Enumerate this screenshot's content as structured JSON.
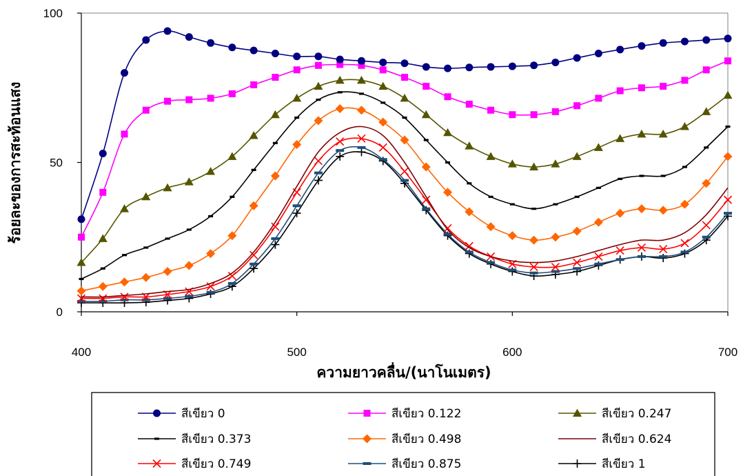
{
  "chart_data": {
    "type": "line",
    "xlabel": "ความยาวคลื่น/(นาโนเมตร)",
    "ylabel": "ร้อยละของการสะท้อนแสง",
    "xlim": [
      400,
      700
    ],
    "ylim": [
      0,
      100
    ],
    "x_ticks": [
      "400",
      "500",
      "600",
      "700"
    ],
    "y_ticks": [
      "0",
      "50",
      "100"
    ],
    "grid": false,
    "legend_position": "bottom",
    "x": [
      400,
      410,
      420,
      430,
      440,
      450,
      460,
      470,
      480,
      490,
      500,
      510,
      520,
      530,
      540,
      550,
      560,
      570,
      580,
      590,
      600,
      610,
      620,
      630,
      640,
      650,
      660,
      670,
      680,
      690,
      700
    ],
    "series": [
      {
        "name": "สีเขียว 0",
        "color": "#000080",
        "marker": "circle",
        "values": [
          31,
          53,
          80,
          91,
          94,
          92,
          90,
          88.5,
          87.5,
          86.5,
          85.5,
          85.5,
          84.5,
          84,
          83.5,
          83.2,
          82,
          81.5,
          81.8,
          82,
          82.2,
          82.5,
          83.5,
          85,
          86.5,
          87.8,
          89,
          90,
          90.5,
          91,
          91.5
        ]
      },
      {
        "name": "สีเขียว 0.122",
        "color": "#ff00ff",
        "marker": "square",
        "values": [
          25,
          40,
          59.5,
          67.5,
          70.5,
          71,
          71.5,
          73,
          76,
          78.5,
          81,
          82.5,
          82.8,
          82.5,
          81,
          78.5,
          75.5,
          72,
          69.5,
          67.5,
          66,
          66,
          67,
          69,
          71.5,
          74,
          75,
          75.5,
          77.5,
          81,
          84
        ]
      },
      {
        "name": "สีเขียว 0.247",
        "color": "#555500",
        "marker": "triangle",
        "values": [
          16.5,
          24.5,
          34.5,
          38.5,
          41.5,
          43.5,
          47,
          52,
          59,
          66,
          71.5,
          75.5,
          77.5,
          77.5,
          75.5,
          71.5,
          66,
          60,
          55.5,
          52,
          49.5,
          48.5,
          49.5,
          52,
          55,
          58,
          59.5,
          59.5,
          62,
          67,
          72.5
        ]
      },
      {
        "name": "สีเขียว 0.373",
        "color": "#000000",
        "marker": "dash",
        "values": [
          11,
          14.5,
          19,
          21.5,
          24.5,
          27.5,
          32,
          38.5,
          47.5,
          56.5,
          65,
          71,
          73.5,
          73,
          70,
          65,
          57.5,
          50,
          43,
          38.5,
          36,
          34.5,
          36,
          38.5,
          41.5,
          44.5,
          45.5,
          45.5,
          48.5,
          55,
          62
        ]
      },
      {
        "name": "สีเขียว 0.498",
        "color": "#ff6600",
        "marker": "diamond",
        "values": [
          7,
          8.5,
          10,
          11.5,
          13.5,
          15.5,
          19.5,
          25.5,
          35.5,
          45.5,
          56,
          64,
          68,
          67.5,
          63.5,
          57.5,
          48.5,
          40,
          33.5,
          28.5,
          25.5,
          24,
          25,
          27,
          30,
          33,
          34.5,
          34,
          36,
          43,
          52
        ]
      },
      {
        "name": "สีเขียว 0.624",
        "color": "#800000",
        "marker": "none",
        "values": [
          5,
          5,
          5.5,
          6,
          6.8,
          7.5,
          9.5,
          13,
          20,
          30,
          42,
          53.5,
          60,
          62,
          59,
          50,
          38.5,
          27.5,
          21.5,
          18.5,
          17,
          16.5,
          17,
          18.5,
          20.5,
          22.5,
          24,
          24,
          26.5,
          32.5,
          41.5
        ]
      },
      {
        "name": "สีเขียว 0.749",
        "color": "#ff0000",
        "marker": "x",
        "values": [
          4.5,
          4.5,
          5,
          5,
          5.8,
          6.8,
          8.5,
          12,
          19,
          28.5,
          40,
          50.5,
          57,
          58,
          55,
          47,
          37.5,
          28,
          22,
          18.5,
          16,
          15,
          15,
          16.5,
          18.5,
          20.5,
          21.5,
          21,
          23,
          29,
          37.5
        ]
      },
      {
        "name": "สีเขียว 0.875",
        "color": "#1f4e79",
        "marker": "hbar",
        "values": [
          3.5,
          3.5,
          4,
          4,
          4.5,
          5.2,
          6.5,
          9.5,
          16,
          24.5,
          35.5,
          46.5,
          54,
          55,
          51,
          44,
          34.5,
          26,
          20,
          16.5,
          14,
          13,
          13.5,
          14.5,
          16,
          17.5,
          18.5,
          18.5,
          20,
          25,
          33
        ]
      },
      {
        "name": "สีเขียว 1",
        "color": "#000000",
        "marker": "plus",
        "values": [
          3,
          3,
          3,
          3.2,
          3.8,
          4.5,
          6,
          8.5,
          14.5,
          22.5,
          33,
          44,
          52,
          53.5,
          50.5,
          43,
          34,
          25.5,
          19.5,
          16,
          13.5,
          12,
          12.5,
          13.5,
          15.5,
          17.5,
          18.5,
          18,
          19.5,
          24,
          32
        ]
      }
    ]
  }
}
